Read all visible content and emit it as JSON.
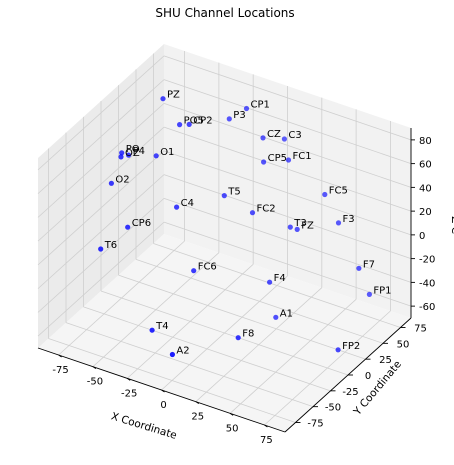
{
  "chart_data": {
    "type": "scatter",
    "title": "SHU Channel Locations",
    "xlabel": "X Coordinate",
    "ylabel": "Y Coordinate",
    "zlabel": "Z C",
    "xlim": [
      -90,
      90
    ],
    "ylim": [
      -90,
      90
    ],
    "zlim": [
      -70,
      90
    ],
    "xticks": [
      -75,
      -50,
      -25,
      0,
      25,
      50,
      75
    ],
    "yticks": [
      -75,
      -50,
      -25,
      0,
      25,
      50,
      75
    ],
    "zticks": [
      -60,
      -40,
      -20,
      0,
      20,
      40,
      60,
      80
    ],
    "grid": true,
    "marker_color": "#0000ff",
    "panes": {
      "left": "#ebebeb",
      "back": "#f2f2f2",
      "floor": "#f5f5f5"
    },
    "points": [
      {
        "label": "CP1",
        "x": -12,
        "y": 55,
        "z": 85
      },
      {
        "label": "CZ",
        "x": 0,
        "y": 55,
        "z": 65
      },
      {
        "label": "C3",
        "x": 12,
        "y": 62,
        "z": 65
      },
      {
        "label": "FC1",
        "x": 16,
        "y": 60,
        "z": 50
      },
      {
        "label": "CP5",
        "x": 4,
        "y": 48,
        "z": 50
      },
      {
        "label": "P3",
        "x": -22,
        "y": 50,
        "z": 75
      },
      {
        "label": "PZ",
        "x": -55,
        "y": 20,
        "z": 95
      },
      {
        "label": "PO5",
        "x": -45,
        "y": 24,
        "z": 75
      },
      {
        "label": "CP2",
        "x": -40,
        "y": 28,
        "z": 75
      },
      {
        "label": "T5",
        "x": -18,
        "y": 35,
        "z": 20
      },
      {
        "label": "FC2",
        "x": 0,
        "y": 40,
        "z": 10
      },
      {
        "label": "FC5",
        "x": 45,
        "y": 55,
        "z": 35
      },
      {
        "label": "F3",
        "x": 55,
        "y": 55,
        "z": 15
      },
      {
        "label": "T3",
        "x": 25,
        "y": 45,
        "z": 5
      },
      {
        "label": "FZ",
        "x": 30,
        "y": 45,
        "z": 5
      },
      {
        "label": "F7",
        "x": 75,
        "y": 45,
        "z": -10
      },
      {
        "label": "O1",
        "x": -60,
        "y": 20,
        "z": 45
      },
      {
        "label": "P4",
        "x": -75,
        "y": 10,
        "z": 45
      },
      {
        "label": "PO",
        "x": -80,
        "y": 10,
        "z": 45
      },
      {
        "label": "OZ",
        "x": -78,
        "y": 5,
        "z": 45
      },
      {
        "label": "C4",
        "x": -40,
        "y": 10,
        "z": 15
      },
      {
        "label": "O2",
        "x": -85,
        "y": 5,
        "z": 20
      },
      {
        "label": "F4",
        "x": 15,
        "y": 35,
        "z": -40
      },
      {
        "label": "A1",
        "x": 18,
        "y": 38,
        "z": -70
      },
      {
        "label": "FP1",
        "x": 75,
        "y": 60,
        "z": -40
      },
      {
        "label": "FP2",
        "x": 70,
        "y": 25,
        "z": -70
      },
      {
        "label": "CP6",
        "x": -68,
        "y": -5,
        "z": -5
      },
      {
        "label": "T6",
        "x": -80,
        "y": -20,
        "z": -20
      },
      {
        "label": "FC6",
        "x": -25,
        "y": 5,
        "z": -30
      },
      {
        "label": "T4",
        "x": -40,
        "y": -25,
        "z": -70
      },
      {
        "label": "F8",
        "x": 10,
        "y": 0,
        "z": -70
      },
      {
        "label": "A2",
        "x": -15,
        "y": -45,
        "z": -70
      }
    ]
  }
}
